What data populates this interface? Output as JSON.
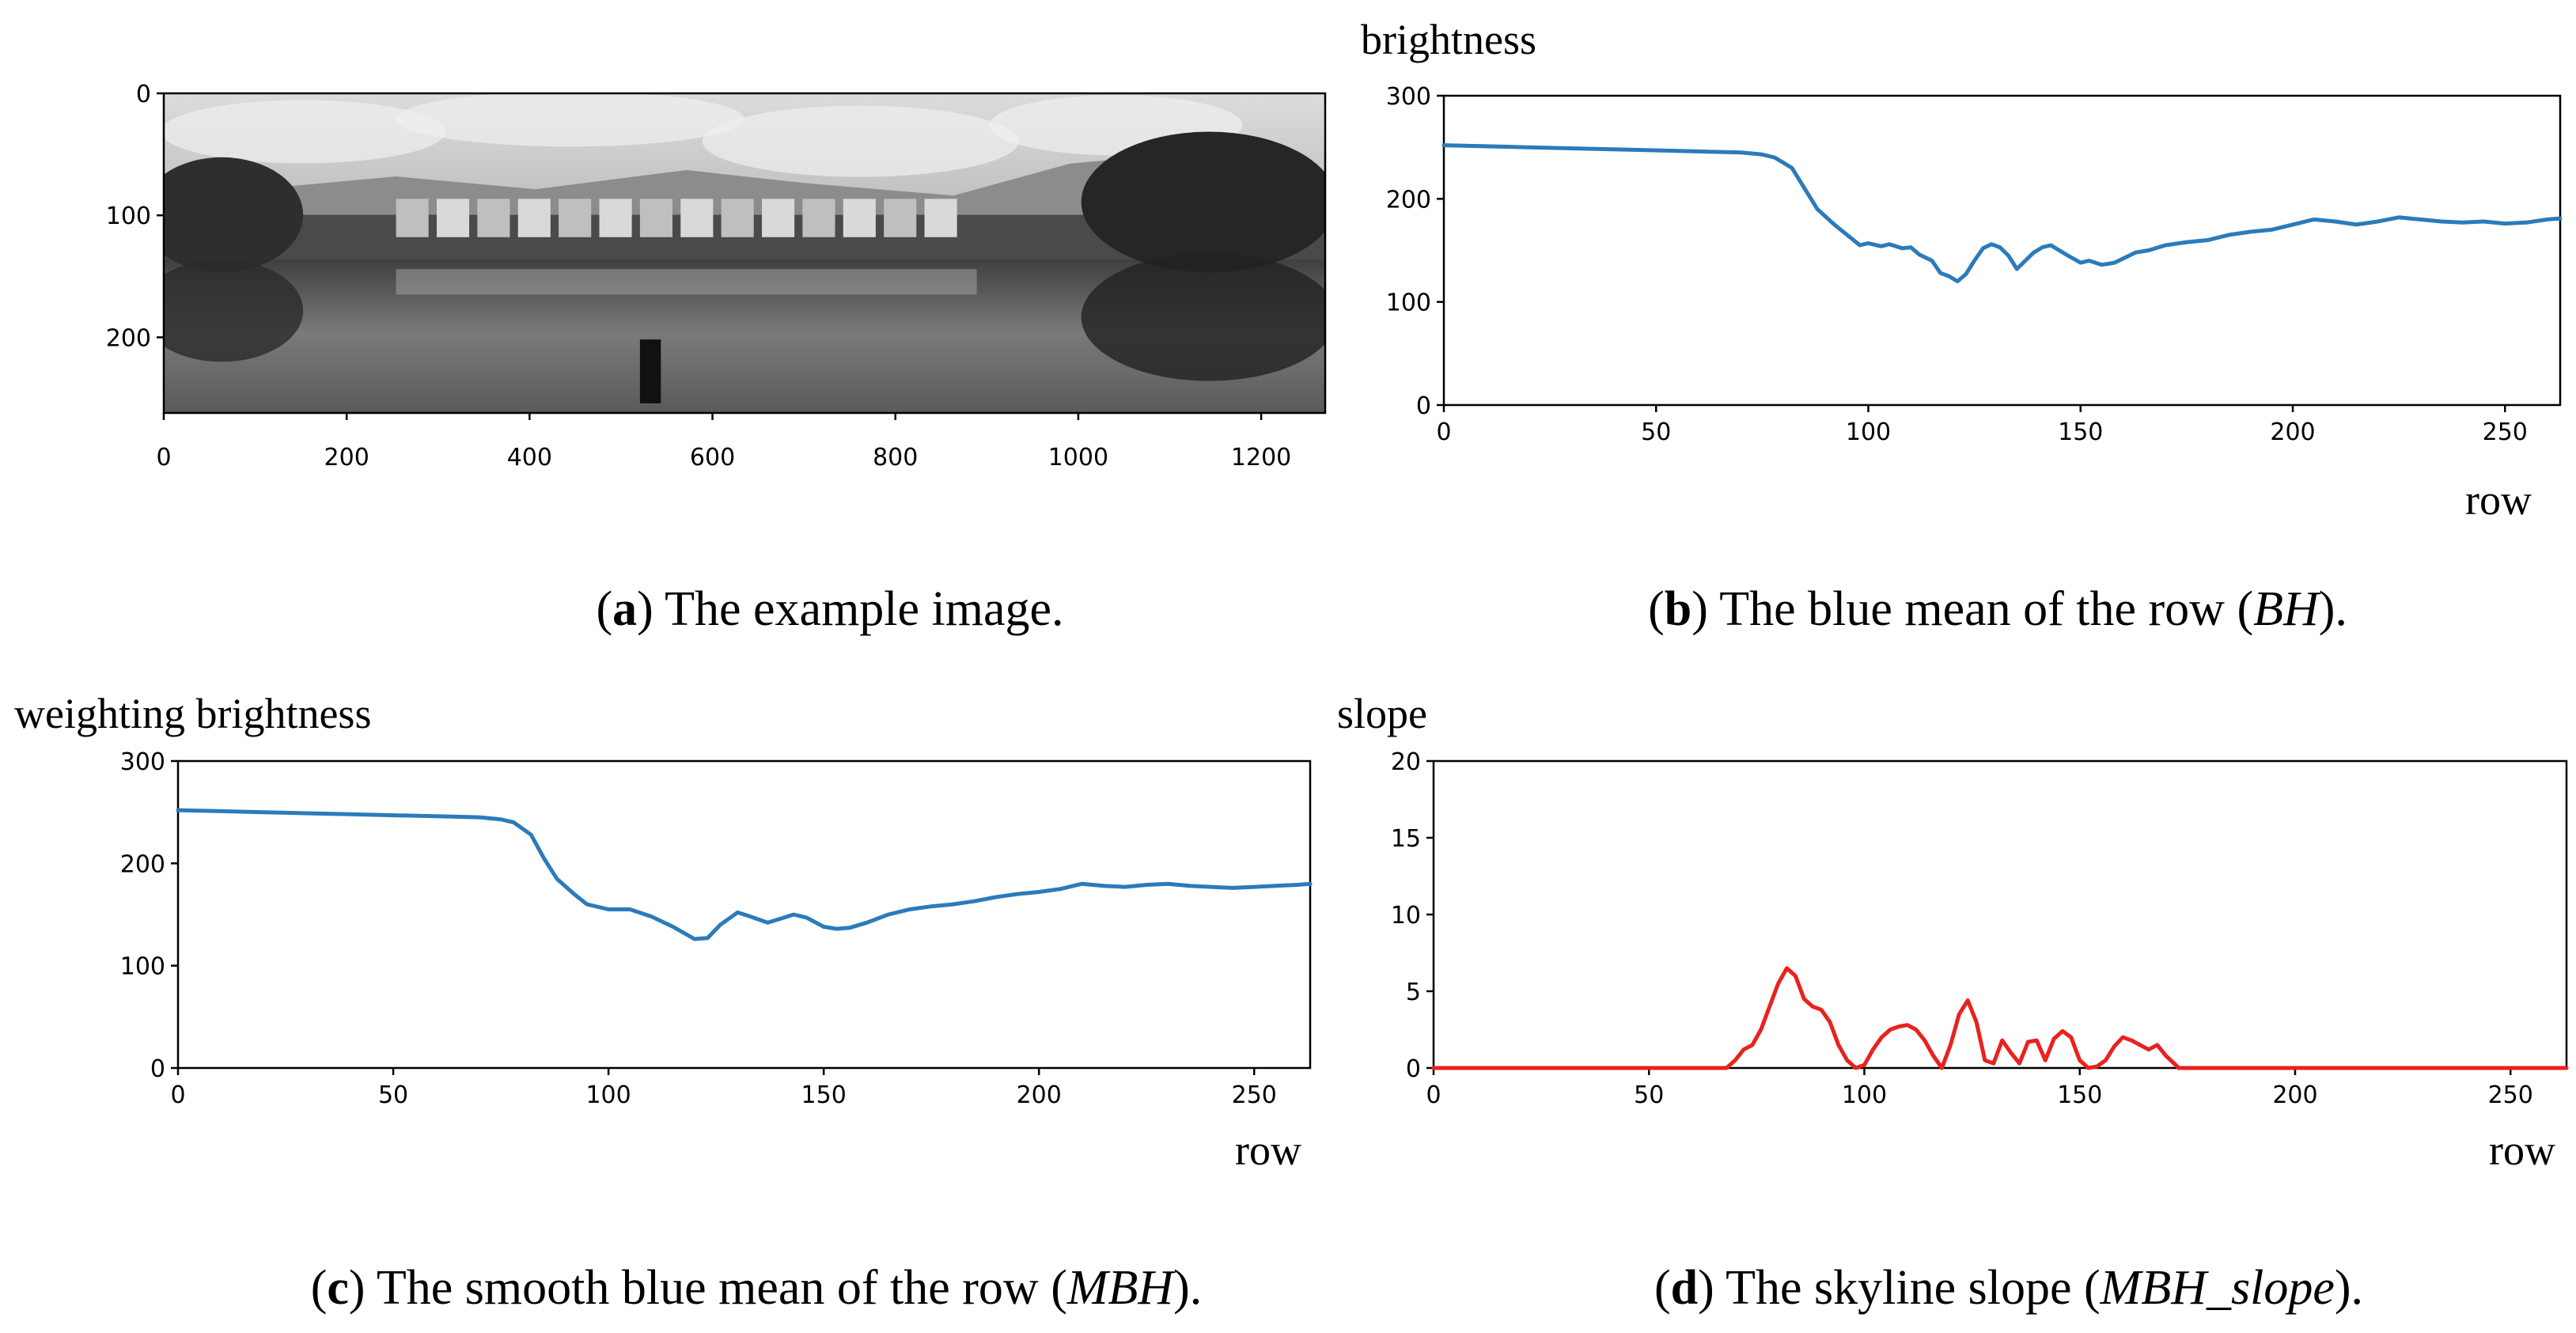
{
  "captions": {
    "a": {
      "letter": "a",
      "text": " The example image."
    },
    "b": {
      "letter": "b",
      "pre": " The blue mean of the row (",
      "ital": "BH",
      "post": ")."
    },
    "c": {
      "letter": "c",
      "pre": " The smooth blue mean of the row (",
      "ital": "MBH",
      "post": ")."
    },
    "d": {
      "letter": "d",
      "pre": " The skyline slope (",
      "ital": "MBH_slope",
      "post": ")."
    }
  },
  "colors": {
    "blue_series": "#2b7bba",
    "red_series": "#e8221e"
  },
  "chart_data": [
    {
      "id": "a",
      "type": "image",
      "content": "grayscale panorama photograph of a lake village reflected in water",
      "x_ticks": [
        "0",
        "200",
        "400",
        "600",
        "800",
        "1000",
        "1200"
      ],
      "y_ticks": [
        "0",
        "100",
        "200"
      ],
      "xlim": [
        0,
        1270
      ],
      "ylim": [
        0,
        262
      ]
    },
    {
      "id": "b",
      "type": "line",
      "ylabel": "brightness",
      "xlabel": "row",
      "xlim": [
        0,
        263
      ],
      "ylim": [
        0,
        300
      ],
      "x_ticks": [
        "0",
        "50",
        "100",
        "150",
        "200",
        "250"
      ],
      "y_ticks": [
        "0",
        "100",
        "200",
        "300"
      ],
      "color": "#2b7bba",
      "x": [
        0,
        20,
        40,
        60,
        70,
        75,
        78,
        82,
        85,
        88,
        92,
        95,
        98,
        100,
        103,
        105,
        108,
        110,
        112,
        115,
        117,
        119,
        121,
        123,
        125,
        127,
        129,
        131,
        133,
        135,
        137,
        139,
        141,
        143,
        145,
        147,
        150,
        152,
        155,
        158,
        160,
        163,
        166,
        170,
        175,
        180,
        185,
        190,
        195,
        200,
        205,
        210,
        215,
        220,
        225,
        230,
        235,
        240,
        245,
        250,
        255,
        260,
        263
      ],
      "y": [
        252,
        250,
        248,
        246,
        245,
        243,
        240,
        230,
        210,
        190,
        175,
        165,
        155,
        157,
        154,
        156,
        152,
        153,
        146,
        140,
        128,
        125,
        120,
        127,
        140,
        152,
        156,
        153,
        145,
        132,
        140,
        148,
        153,
        155,
        150,
        145,
        138,
        140,
        136,
        138,
        142,
        148,
        150,
        155,
        158,
        160,
        165,
        168,
        170,
        175,
        180,
        178,
        175,
        178,
        182,
        180,
        178,
        177,
        178,
        176,
        177,
        180,
        181
      ]
    },
    {
      "id": "c",
      "type": "line",
      "ylabel": "weighting brightness",
      "xlabel": "row",
      "xlim": [
        0,
        263
      ],
      "ylim": [
        0,
        300
      ],
      "x_ticks": [
        "0",
        "50",
        "100",
        "150",
        "200",
        "250"
      ],
      "y_ticks": [
        "0",
        "100",
        "200",
        "300"
      ],
      "color": "#2b7bba",
      "x": [
        0,
        20,
        40,
        60,
        70,
        75,
        78,
        82,
        85,
        88,
        92,
        95,
        100,
        105,
        110,
        115,
        120,
        123,
        126,
        130,
        133,
        137,
        140,
        143,
        146,
        150,
        153,
        156,
        160,
        165,
        170,
        175,
        180,
        185,
        190,
        195,
        200,
        205,
        210,
        215,
        220,
        225,
        230,
        235,
        240,
        245,
        250,
        255,
        260,
        263
      ],
      "y": [
        252,
        250,
        248,
        246,
        245,
        243,
        240,
        228,
        205,
        185,
        170,
        160,
        155,
        155,
        148,
        138,
        126,
        127,
        140,
        152,
        148,
        142,
        146,
        150,
        147,
        138,
        136,
        137,
        142,
        150,
        155,
        158,
        160,
        163,
        167,
        170,
        172,
        175,
        180,
        178,
        177,
        179,
        180,
        178,
        177,
        176,
        177,
        178,
        179,
        180
      ]
    },
    {
      "id": "d",
      "type": "line",
      "ylabel": "slope",
      "xlabel": "row",
      "xlim": [
        0,
        263
      ],
      "ylim": [
        0,
        20
      ],
      "x_ticks": [
        "0",
        "50",
        "100",
        "150",
        "200",
        "250"
      ],
      "y_ticks": [
        "0",
        "5",
        "10",
        "15",
        "20"
      ],
      "color": "#e8221e",
      "x": [
        0,
        68,
        70,
        72,
        74,
        76,
        78,
        80,
        82,
        84,
        86,
        88,
        90,
        92,
        94,
        96,
        98,
        100,
        102,
        104,
        106,
        108,
        110,
        112,
        114,
        116,
        118,
        120,
        122,
        124,
        126,
        128,
        130,
        132,
        134,
        136,
        138,
        140,
        142,
        144,
        146,
        148,
        150,
        152,
        154,
        156,
        158,
        160,
        162,
        164,
        166,
        168,
        170,
        173,
        263
      ],
      "y": [
        0,
        0,
        0.5,
        1.2,
        1.5,
        2.5,
        4.0,
        5.5,
        6.5,
        6.0,
        4.5,
        4.0,
        3.8,
        3.0,
        1.5,
        0.5,
        0,
        0.2,
        1.2,
        2.0,
        2.5,
        2.7,
        2.8,
        2.5,
        1.8,
        0.8,
        0,
        1.5,
        3.5,
        4.4,
        3.0,
        0.5,
        0.3,
        1.8,
        1.0,
        0.3,
        1.7,
        1.8,
        0.5,
        1.9,
        2.4,
        2.0,
        0.5,
        0,
        0.1,
        0.5,
        1.4,
        2.0,
        1.8,
        1.5,
        1.2,
        1.5,
        0.8,
        0,
        0
      ]
    }
  ]
}
